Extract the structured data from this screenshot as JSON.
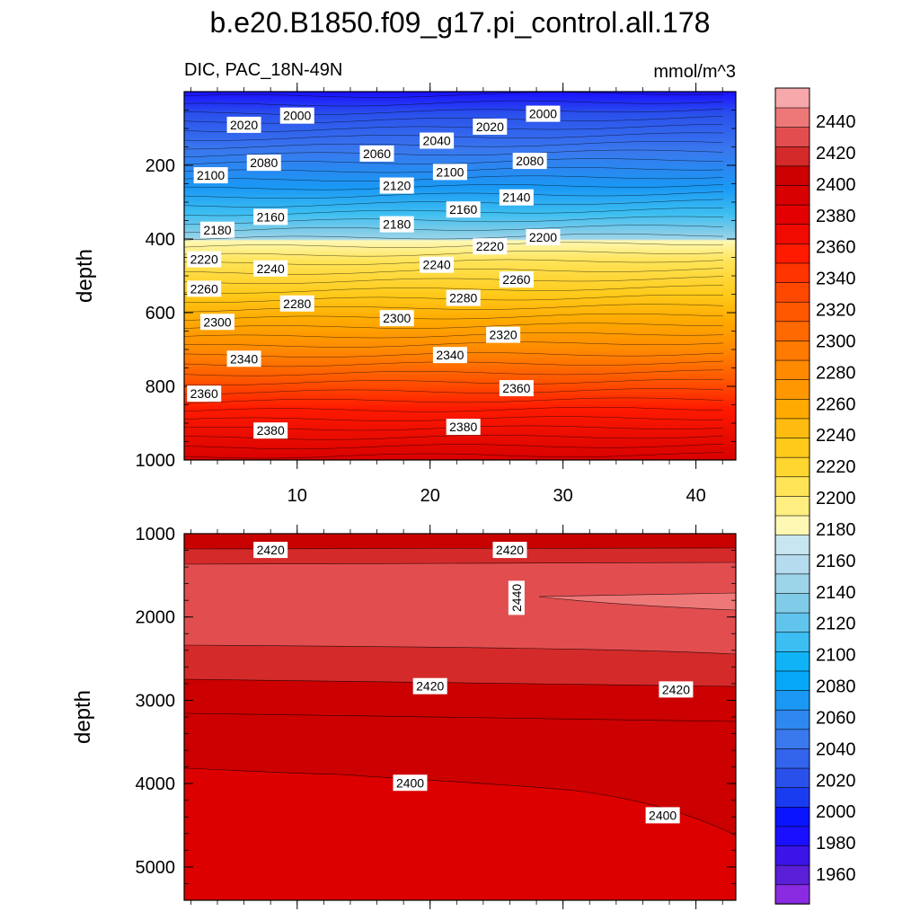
{
  "chart_data": {
    "type": "contour",
    "title": "b.e20.B1850.f09_g17.pi_control.all.178",
    "variable_label": "DIC, PAC_18N-49N",
    "units_label": "mmol/m^3",
    "colorbar": {
      "levels": [
        1960,
        1980,
        2000,
        2020,
        2040,
        2060,
        2080,
        2100,
        2120,
        2140,
        2160,
        2180,
        2200,
        2220,
        2240,
        2260,
        2280,
        2300,
        2320,
        2340,
        2360,
        2380,
        2400,
        2420,
        2440
      ],
      "tick_labels": [
        "1960",
        "1980",
        "2000",
        "2020",
        "2040",
        "2060",
        "2080",
        "2100",
        "2120",
        "2140",
        "2160",
        "2180",
        "2200",
        "2220",
        "2240",
        "2260",
        "2280",
        "2300",
        "2320",
        "2340",
        "2360",
        "2380",
        "2400",
        "2420",
        "2440"
      ],
      "colors": [
        "#8a2be2",
        "#5a1fd6",
        "#3a14e8",
        "#1a10ff",
        "#0a14ff",
        "#1a3cf0",
        "#2a50ec",
        "#3264ec",
        "#3a78ee",
        "#2e88f0",
        "#1a98f4",
        "#08a8f8",
        "#10b4f6",
        "#3cbef2",
        "#60c4ec",
        "#80cce8",
        "#9cd4ea",
        "#b4dcee",
        "#c8e6f2",
        "#fff8b4",
        "#ffee80",
        "#ffe458",
        "#ffd630",
        "#ffca1a",
        "#ffbc10",
        "#ffaa00",
        "#ff9800",
        "#ff8a00",
        "#ff7a00",
        "#ff6a00",
        "#ff5800",
        "#ff4800",
        "#ff3400",
        "#ff1a00",
        "#f00a00",
        "#e40000",
        "#d80000",
        "#cc0000",
        "#d42a2a",
        "#e24e50",
        "#ee7878",
        "#f6a8aa"
      ]
    },
    "upper_panel": {
      "x_range": [
        1.5,
        43
      ],
      "y_range": [
        0,
        1000
      ],
      "ylabel": "depth",
      "x_ticks": [
        10,
        20,
        30,
        40
      ],
      "x_tick_labels": [
        "10",
        "20",
        "30",
        "40"
      ],
      "y_ticks": [
        200,
        400,
        600,
        800,
        1000
      ],
      "y_tick_labels": [
        "200",
        "400",
        "600",
        "800",
        "1000"
      ],
      "contour_labels": [
        {
          "text": "2020",
          "x": 6,
          "y": 90
        },
        {
          "text": "2000",
          "x": 10,
          "y": 65
        },
        {
          "text": "2020",
          "x": 24.5,
          "y": 95
        },
        {
          "text": "2000",
          "x": 28.5,
          "y": 60
        },
        {
          "text": "2040",
          "x": 20.5,
          "y": 133
        },
        {
          "text": "2060",
          "x": 16,
          "y": 168
        },
        {
          "text": "2080",
          "x": 7.5,
          "y": 193
        },
        {
          "text": "2080",
          "x": 27.5,
          "y": 188
        },
        {
          "text": "2100",
          "x": 3.5,
          "y": 227
        },
        {
          "text": "2100",
          "x": 21.5,
          "y": 218
        },
        {
          "text": "2120",
          "x": 17.5,
          "y": 255
        },
        {
          "text": "2140",
          "x": 26.5,
          "y": 287
        },
        {
          "text": "2160",
          "x": 8,
          "y": 340
        },
        {
          "text": "2160",
          "x": 22.5,
          "y": 320
        },
        {
          "text": "2180",
          "x": 4,
          "y": 375
        },
        {
          "text": "2180",
          "x": 17.5,
          "y": 360
        },
        {
          "text": "2200",
          "x": 28.5,
          "y": 395
        },
        {
          "text": "2220",
          "x": 24.5,
          "y": 420
        },
        {
          "text": "2220",
          "x": 3,
          "y": 455
        },
        {
          "text": "2240",
          "x": 8,
          "y": 480
        },
        {
          "text": "2240",
          "x": 20.5,
          "y": 470
        },
        {
          "text": "2260",
          "x": 26.5,
          "y": 510
        },
        {
          "text": "2260",
          "x": 3,
          "y": 535
        },
        {
          "text": "2280",
          "x": 10,
          "y": 575
        },
        {
          "text": "2280",
          "x": 22.5,
          "y": 560
        },
        {
          "text": "2300",
          "x": 4,
          "y": 625
        },
        {
          "text": "2300",
          "x": 17.5,
          "y": 615
        },
        {
          "text": "2320",
          "x": 25.5,
          "y": 660
        },
        {
          "text": "2340",
          "x": 6,
          "y": 725
        },
        {
          "text": "2340",
          "x": 21.5,
          "y": 715
        },
        {
          "text": "2360",
          "x": 3,
          "y": 820
        },
        {
          "text": "2360",
          "x": 26.5,
          "y": 805
        },
        {
          "text": "2380",
          "x": 8,
          "y": 920
        },
        {
          "text": "2380",
          "x": 22.5,
          "y": 910
        }
      ]
    },
    "lower_panel": {
      "y_range": [
        1000,
        5400
      ],
      "ylabel": "depth",
      "y_ticks": [
        1000,
        2000,
        3000,
        4000,
        5000
      ],
      "y_tick_labels": [
        "1000",
        "2000",
        "3000",
        "4000",
        "5000"
      ],
      "contour_labels": [
        {
          "text": "2420",
          "x": 8,
          "y": 1195
        },
        {
          "text": "2420",
          "x": 26,
          "y": 1195
        },
        {
          "text": "2440",
          "x": 26.5,
          "y": 1770
        },
        {
          "text": "2420",
          "x": 20,
          "y": 2830
        },
        {
          "text": "2420",
          "x": 38.5,
          "y": 2870
        },
        {
          "text": "2400",
          "x": 18.5,
          "y": 3990
        },
        {
          "text": "2400",
          "x": 37.5,
          "y": 4380
        }
      ]
    }
  }
}
